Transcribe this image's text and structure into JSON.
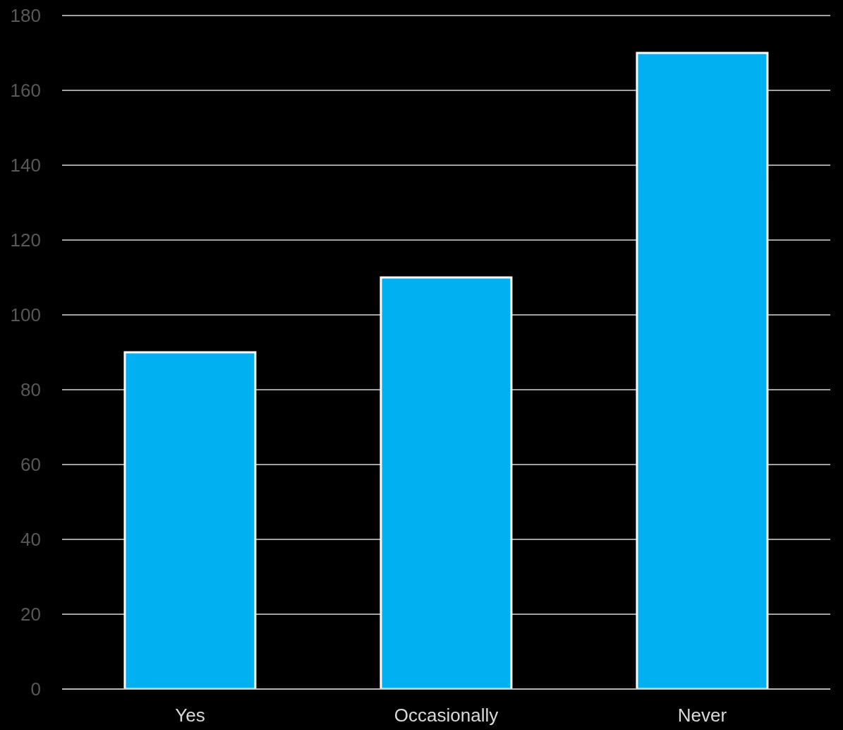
{
  "chart_data": {
    "type": "bar",
    "categories": [
      "Yes",
      "Occasionally",
      "Never"
    ],
    "values": [
      90,
      110,
      170
    ],
    "color": "#00b0f0",
    "ylim": [
      0,
      180
    ],
    "yticks": [
      0,
      20,
      40,
      60,
      80,
      100,
      120,
      140,
      160,
      180
    ],
    "grid": "y"
  }
}
